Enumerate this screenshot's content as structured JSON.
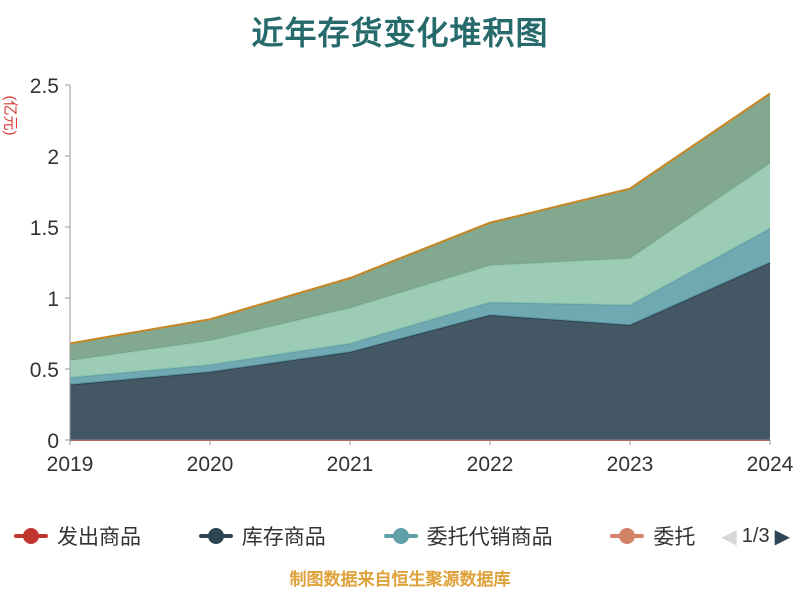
{
  "page": {
    "title": "近年存货变化堆积图",
    "footer_note": "制图数据来自恒生聚源数据库"
  },
  "legend": {
    "page_indicator": "1/3",
    "prev_icon": "◀",
    "next_icon": "▶",
    "items": [
      {
        "label": "发出商品",
        "color": "#c23531"
      },
      {
        "label": "库存商品",
        "color": "#2f4554"
      },
      {
        "label": "委托代销商品",
        "color": "#61a0a8"
      },
      {
        "label": "委托",
        "color": "#d48265"
      }
    ]
  },
  "chart_data": {
    "type": "area",
    "stacked": true,
    "title": "近年存货变化堆积图",
    "ylabel": "(亿元)",
    "xlabel": "",
    "ylim": [
      0,
      2.5
    ],
    "yticks": [
      0,
      0.5,
      1,
      1.5,
      2,
      2.5
    ],
    "grid": false,
    "legend_position": "bottom",
    "axis_color": "#999999",
    "tick_label_color": "#333333",
    "categories": [
      "2019",
      "2020",
      "2021",
      "2022",
      "2023",
      "2024"
    ],
    "series": [
      {
        "name": "发出商品",
        "color": "#c23531",
        "values": [
          0,
          0,
          0,
          0,
          0,
          0
        ]
      },
      {
        "name": "库存商品",
        "color": "#2f4554",
        "values": [
          0.39,
          0.48,
          0.62,
          0.88,
          0.81,
          1.25
        ]
      },
      {
        "name": "委托代销商品",
        "color": "#61a0a8",
        "values": [
          0.05,
          0.05,
          0.06,
          0.09,
          0.14,
          0.24
        ]
      },
      {
        "name": "",
        "color": "#91c7ae",
        "values": [
          0.12,
          0.17,
          0.25,
          0.26,
          0.33,
          0.46
        ]
      },
      {
        "name": "",
        "color": "#749f83",
        "values": [
          0.12,
          0.15,
          0.21,
          0.3,
          0.49,
          0.49
        ]
      },
      {
        "name": "委托",
        "color": "#ca8622",
        "values": [
          0,
          0,
          0,
          0,
          0,
          0
        ]
      }
    ]
  }
}
